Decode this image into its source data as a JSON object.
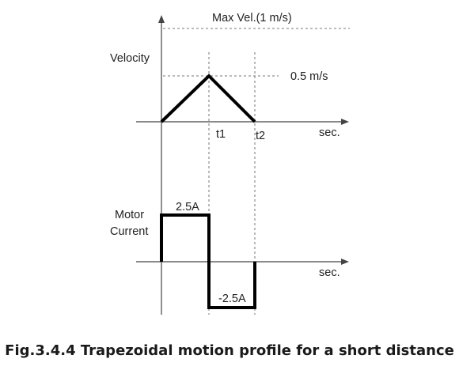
{
  "labels": {
    "max_velocity": "Max Vel.(1 m/s)",
    "velocity_axis": "Velocity",
    "peak_velocity": "0.5 m/s",
    "t1": "t1",
    "t2": "t2",
    "time_unit_top": "sec.",
    "current_axis_line1": "Motor",
    "current_axis_line2": "Current",
    "positive_current": "2.5A",
    "negative_current": "-2.5A",
    "time_unit_bottom": "sec."
  },
  "caption": "Fig.3.4.4 Trapezoidal motion profile for a short distance",
  "colors": {
    "line": "#000000",
    "axis": "#444444",
    "guide": "#777777"
  }
}
